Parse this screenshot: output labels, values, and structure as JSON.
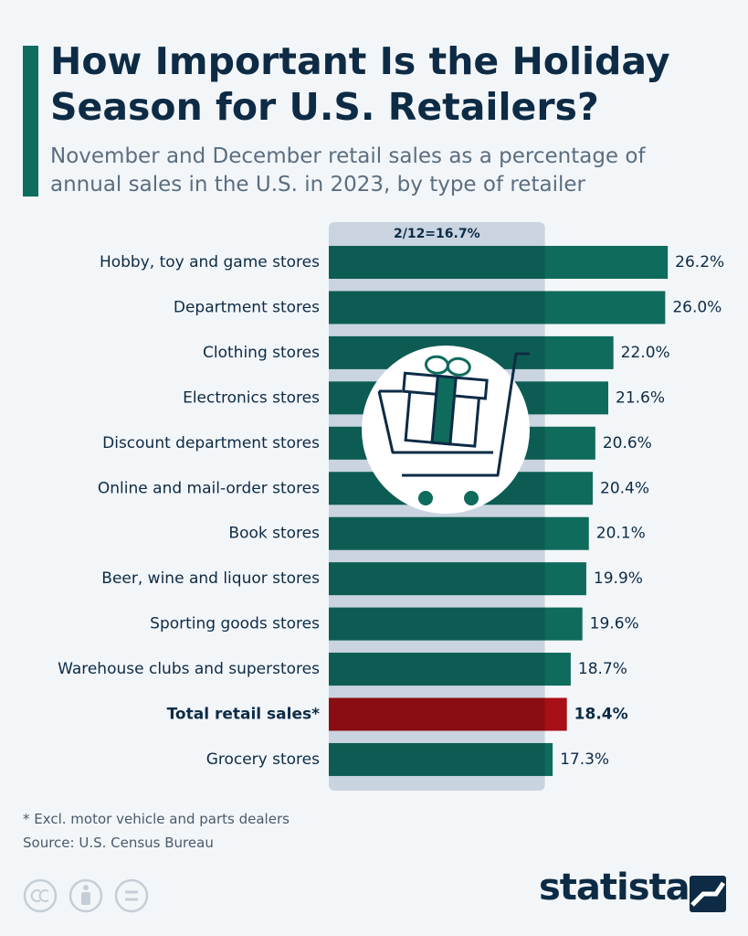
{
  "chart_data": {
    "type": "bar",
    "orientation": "horizontal",
    "title": "How Important Is the Holiday Season for U.S. Retailers?",
    "subtitle": "November and December retail sales as a percentage of annual sales in the U.S. in 2023, by type of retailer",
    "categories": [
      "Hobby, toy and game stores",
      "Department stores",
      "Clothing stores",
      "Electronics stores",
      "Discount department stores",
      "Online and mail-order stores",
      "Book stores",
      "Beer, wine and liquor stores",
      "Sporting goods stores",
      "Warehouse clubs and superstores",
      "Total retail sales*",
      "Grocery stores"
    ],
    "values": [
      26.2,
      26.0,
      22.0,
      21.6,
      20.6,
      20.4,
      20.1,
      19.9,
      19.6,
      18.7,
      18.4,
      17.3
    ],
    "value_labels": [
      "26.2%",
      "26.0%",
      "22.0%",
      "21.6%",
      "20.6%",
      "20.4%",
      "20.1%",
      "19.9%",
      "19.6%",
      "18.7%",
      "18.4%",
      "17.3%"
    ],
    "colors": [
      "#0f6b5c",
      "#0f6b5c",
      "#0f6b5c",
      "#0f6b5c",
      "#0f6b5c",
      "#0f6b5c",
      "#0f6b5c",
      "#0f6b5c",
      "#0f6b5c",
      "#0f6b5c",
      "#a80f16",
      "#0f6b5c"
    ],
    "bold": [
      false,
      false,
      false,
      false,
      false,
      false,
      false,
      false,
      false,
      false,
      true,
      false
    ],
    "xlim": [
      0,
      30
    ],
    "reference": {
      "value": 16.7,
      "label": "2/12=16.7%"
    }
  },
  "footnote": "* Excl. motor vehicle and parts dealers",
  "source": "Source: U.S. Census Bureau",
  "brand": "statista"
}
